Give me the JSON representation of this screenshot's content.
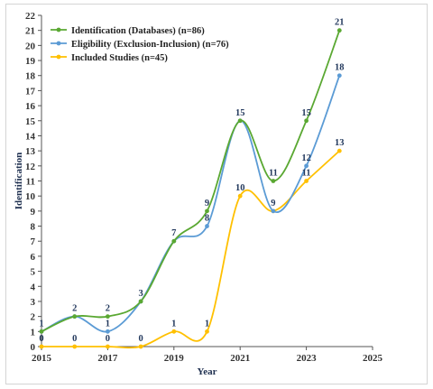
{
  "chart_data": {
    "type": "line",
    "x": [
      2015,
      2016,
      2017,
      2018,
      2019,
      2020,
      2021,
      2022,
      2023,
      2024
    ],
    "xlim": [
      2015,
      2025
    ],
    "xticks": [
      2015,
      2017,
      2019,
      2021,
      2023,
      2025
    ],
    "ylim": [
      0,
      22
    ],
    "yticks": [
      0,
      1,
      2,
      3,
      4,
      5,
      6,
      7,
      8,
      9,
      10,
      11,
      12,
      13,
      14,
      15,
      16,
      17,
      18,
      19,
      20,
      21,
      22
    ],
    "xlabel": "Year",
    "ylabel": "Identification",
    "grid": false,
    "legend_position": "top-left",
    "series": [
      {
        "name": "Identification (Databases) (n=86)",
        "color": "#5aa832",
        "values": [
          1,
          2,
          2,
          3,
          7,
          9,
          15,
          11,
          15,
          21
        ],
        "labels": [
          "1",
          "2",
          "2",
          "3",
          "7",
          "9",
          "15",
          "11",
          "15",
          "21"
        ]
      },
      {
        "name": "Eligibility (Exclusion-Inclusion) (n=76)",
        "color": "#5b9bd5",
        "values": [
          1,
          2,
          1,
          3,
          7,
          8,
          15,
          9,
          12,
          18
        ],
        "labels": [
          "",
          "",
          "1",
          "",
          "",
          "8",
          "",
          "9",
          "12",
          "18"
        ]
      },
      {
        "name": "Included Studies (n=45)",
        "color": "#ffc000",
        "values": [
          0,
          0,
          0,
          0,
          1,
          1,
          10,
          9,
          11,
          13
        ],
        "labels": [
          "0",
          "0",
          "0",
          "0",
          "1",
          "1",
          "10",
          "",
          "11",
          "13"
        ]
      }
    ]
  }
}
